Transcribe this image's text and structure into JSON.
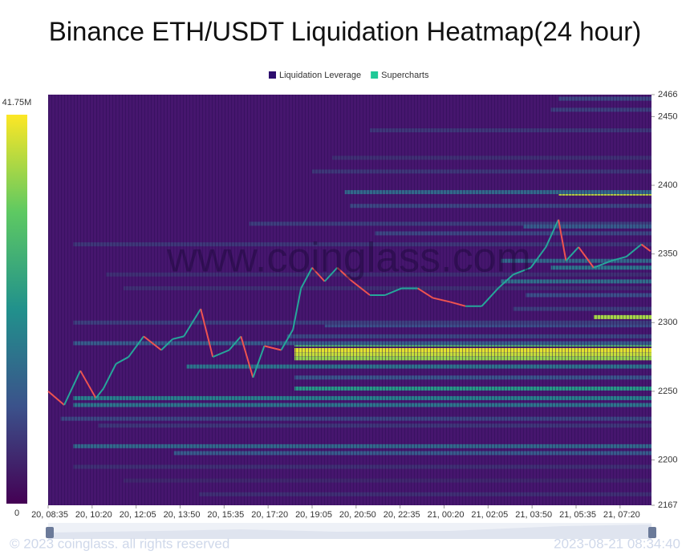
{
  "chart_data": {
    "type": "heatmap",
    "title": "Binance ETH/USDT Liquidation Heatmap(24 hour)",
    "legend": [
      {
        "name": "Liquidation Leverage",
        "color": "#2d0d6e"
      },
      {
        "name": "Supercharts",
        "color": "#20c997"
      }
    ],
    "legend_position": "top",
    "watermark": "www.coinglass.com",
    "footer_left": "© 2023 coinglass. all rights reserved",
    "footer_right": "2023-08-21 08:34:40",
    "background_color": "#46166e",
    "up_color": "#26a69a",
    "down_color": "#ef5350",
    "xlim": [
      0,
      24
    ],
    "xticks": [
      {
        "value": 0,
        "label": "20, 08:35"
      },
      {
        "value": 1.75,
        "label": "20, 10:20"
      },
      {
        "value": 3.5,
        "label": "20, 12:05"
      },
      {
        "value": 5.25,
        "label": "20, 13:50"
      },
      {
        "value": 7,
        "label": "20, 15:35"
      },
      {
        "value": 8.75,
        "label": "20, 17:20"
      },
      {
        "value": 10.5,
        "label": "20, 19:05"
      },
      {
        "value": 12.25,
        "label": "20, 20:50"
      },
      {
        "value": 14,
        "label": "20, 22:35"
      },
      {
        "value": 15.75,
        "label": "21, 00:20"
      },
      {
        "value": 17.5,
        "label": "21, 02:05"
      },
      {
        "value": 19.25,
        "label": "21, 03:50"
      },
      {
        "value": 21,
        "label": "21, 05:35"
      },
      {
        "value": 22.75,
        "label": "21, 07:20"
      }
    ],
    "ylim": [
      2167,
      2466
    ],
    "yticks": [
      2167,
      2200,
      2250,
      2300,
      2350,
      2400,
      2450,
      2466
    ],
    "zlim": [
      0,
      41.75
    ],
    "zticks": [
      0,
      {
        "value": 41.75,
        "label": "41.75M"
      }
    ],
    "price": {
      "x": [
        0,
        0.64,
        1.28,
        1.9,
        2.2,
        2.7,
        3.2,
        3.8,
        4.5,
        4.95,
        5.4,
        6.07,
        6.55,
        7.2,
        7.67,
        8.15,
        8.6,
        9.27,
        9.74,
        10.06,
        10.5,
        11,
        11.5,
        12.1,
        12.8,
        13.4,
        14.06,
        14.7,
        15.3,
        16,
        16.6,
        17.25,
        17.9,
        18.5,
        19.2,
        19.8,
        20.3,
        20.6,
        21.1,
        21.7,
        22.4,
        23,
        23.6,
        23.96
      ],
      "y": [
        2250,
        2240,
        2265,
        2245,
        2252,
        2270,
        2275,
        2290,
        2280,
        2288,
        2290,
        2310,
        2275,
        2280,
        2290,
        2260,
        2283,
        2280,
        2295,
        2325,
        2340,
        2330,
        2340,
        2330,
        2320,
        2320,
        2325,
        2325,
        2318,
        2315,
        2312,
        2312,
        2325,
        2335,
        2340,
        2355,
        2375,
        2345,
        2355,
        2340,
        2345,
        2348,
        2357,
        2352
      ]
    },
    "bands": [
      {
        "price": 2280,
        "start": 9.8,
        "value": 40
      },
      {
        "price": 2277,
        "start": 9.8,
        "value": 38
      },
      {
        "price": 2274,
        "start": 9.8,
        "value": 35
      },
      {
        "price": 2284,
        "start": 9.8,
        "value": 30
      },
      {
        "price": 2394,
        "start": 20.3,
        "value": 38
      },
      {
        "price": 2304,
        "start": 21.7,
        "value": 36
      },
      {
        "price": 2252,
        "start": 9.8,
        "value": 22
      },
      {
        "price": 2245,
        "start": 1,
        "value": 18
      },
      {
        "price": 2240,
        "start": 1,
        "value": 16
      },
      {
        "price": 2210,
        "start": 1,
        "value": 14
      },
      {
        "price": 2205,
        "start": 5,
        "value": 12
      },
      {
        "price": 2395,
        "start": 11.8,
        "value": 14
      },
      {
        "price": 2345,
        "start": 18,
        "value": 14
      },
      {
        "price": 2340,
        "start": 20,
        "value": 16
      },
      {
        "price": 2330,
        "start": 18,
        "value": 15
      },
      {
        "price": 2320,
        "start": 19,
        "value": 10
      },
      {
        "price": 2310,
        "start": 18.5,
        "value": 8
      },
      {
        "price": 2298,
        "start": 11,
        "value": 10
      },
      {
        "price": 2290,
        "start": 9.5,
        "value": 9
      },
      {
        "price": 2285,
        "start": 1,
        "value": 12
      },
      {
        "price": 2268,
        "start": 5.5,
        "value": 16
      },
      {
        "price": 2365,
        "start": 13,
        "value": 9
      },
      {
        "price": 2372,
        "start": 8,
        "value": 8
      },
      {
        "price": 2370,
        "start": 18.9,
        "value": 12
      },
      {
        "price": 2385,
        "start": 12,
        "value": 9
      },
      {
        "price": 2410,
        "start": 10.5,
        "value": 7
      },
      {
        "price": 2420,
        "start": 11.3,
        "value": 6
      },
      {
        "price": 2440,
        "start": 12.8,
        "value": 7
      },
      {
        "price": 2455,
        "start": 20,
        "value": 8
      },
      {
        "price": 2463,
        "start": 20.3,
        "value": 9
      },
      {
        "price": 2357,
        "start": 1,
        "value": 7
      },
      {
        "price": 2335,
        "start": 2.3,
        "value": 6
      },
      {
        "price": 2325,
        "start": 3,
        "value": 6
      },
      {
        "price": 2300,
        "start": 1,
        "value": 8
      },
      {
        "price": 2230,
        "start": 0.5,
        "value": 9
      },
      {
        "price": 2225,
        "start": 2,
        "value": 7
      },
      {
        "price": 2195,
        "start": 1,
        "value": 6
      },
      {
        "price": 2185,
        "start": 3,
        "value": 5
      },
      {
        "price": 2175,
        "start": 6,
        "value": 6
      },
      {
        "price": 2260,
        "start": 9.8,
        "value": 11
      }
    ]
  }
}
